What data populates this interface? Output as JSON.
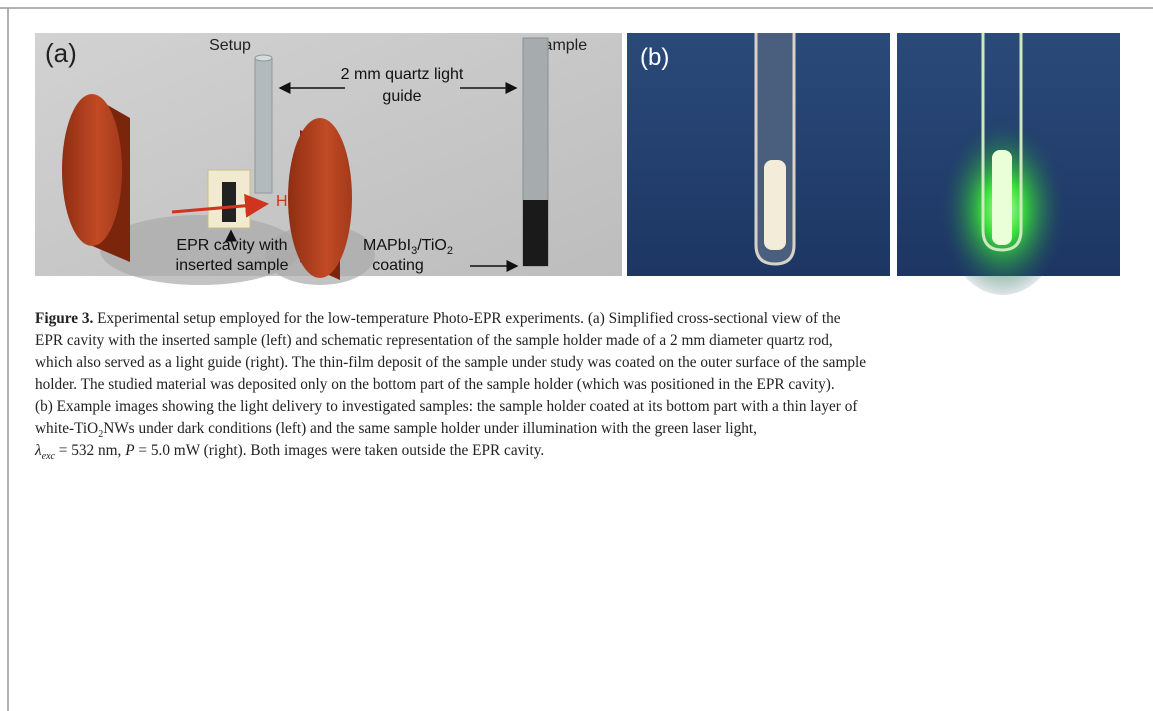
{
  "panel_a": {
    "label": "(a)",
    "setup_title": "Setup",
    "sample_title": "Sample",
    "light_guide_label": [
      "2 mm quartz light",
      "guide"
    ],
    "field_label": "H",
    "cavity_label": [
      "EPR cavity with",
      "inserted sample"
    ],
    "coating_label": {
      "line1": [
        "MAPbI",
        "3",
        "/TiO",
        "2"
      ],
      "line2": "coating"
    }
  },
  "panel_b": {
    "label": "(b)"
  },
  "caption": {
    "lines": [
      [
        "Figure 3.",
        " Experimental setup employed for the low-temperature Photo-EPR experiments. (a) Simplified cross-sectional view of the"
      ],
      [
        "EPR cavity with the inserted sample (left) and schematic representation of the sample holder made of a 2 mm diameter quartz rod,"
      ],
      [
        "which also served as a light guide (right). The thin-film deposit of the sample under study was coated on the outer surface of the sample"
      ],
      [
        "holder. The studied material was deposited only on the bottom part of the sample holder (which was positioned in the EPR cavity)."
      ],
      [
        "(b) Example images showing the light delivery to investigated samples: the sample holder coated at its bottom part with a thin layer of"
      ],
      [
        "white-TiO",
        "2",
        "NWs under dark conditions (left) and the same sample holder under illumination with the green laser light,"
      ],
      [
        "λ",
        "exc",
        " = 532 nm, ",
        "P",
        " = 5.0 mW (right). Both images were taken outside the EPR cavity."
      ]
    ]
  }
}
